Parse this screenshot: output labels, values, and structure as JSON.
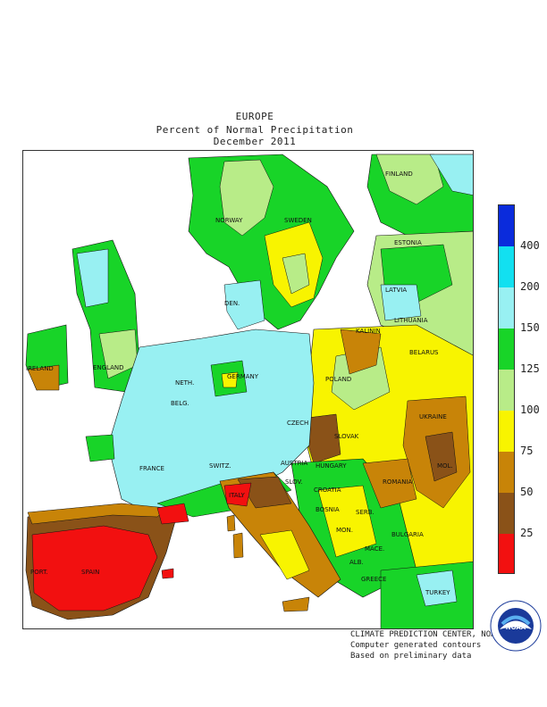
{
  "header": {
    "region": "EUROPE",
    "subtitle": "Percent of Normal Precipitation",
    "period": "December 2011"
  },
  "legend": {
    "levels": [
      "400",
      "200",
      "150",
      "125",
      "100",
      "75",
      "50",
      "25"
    ],
    "colors": {
      "over400": "#0a2bdc",
      "c200_400": "#12e0f0",
      "c150_200": "#98f0f2",
      "c125_150": "#18d428",
      "c100_125": "#b8ec88",
      "c75_100": "#f8f400",
      "c50_75": "#c88408",
      "c25_50": "#8a5218",
      "under25": "#f21010"
    }
  },
  "map_labels": {
    "finland": "FINLAND",
    "norway": "NORWAY",
    "sweden": "SWEDEN",
    "estonia": "ESTONIA",
    "latvia": "LATVIA",
    "lithuania": "LITHUANIA",
    "kalinin": "KALININ",
    "belarus": "BELARUS",
    "den": "DEN.",
    "ireland": "IRELAND",
    "england": "ENGLAND",
    "neth": "NETH.",
    "belg": "BELG.",
    "germany": "GERMANY",
    "poland": "POLAND",
    "czech": "CZECH",
    "slovak": "SLOVAK",
    "ukraine": "UKRAINE",
    "mol": "MOL.",
    "france": "FRANCE",
    "switz": "SWITZ.",
    "austria": "AUSTRIA",
    "hungary": "HUNGARY",
    "romania": "ROMANIA",
    "slov": "SLOV.",
    "croatia": "CROATIA",
    "bosnia": "BOSNIA",
    "serb": "SERB.",
    "italy": "ITALY",
    "mon": "MON.",
    "bulgaria": "BULGARIA",
    "mace": "MACE.",
    "alb": "ALB.",
    "greece": "GREECE",
    "turkey": "TURKEY",
    "port": "PORT.",
    "spain": "SPAIN"
  },
  "credits": {
    "line1": "CLIMATE PREDICTION CENTER, NOAA",
    "line2": "Computer generated contours",
    "line3": "Based on preliminary data"
  },
  "logo": {
    "text": "NOAA",
    "ring": "NATIONAL OCEANIC AND ATMOSPHERIC ADMINISTRATION · U.S. DEPARTMENT OF COMMERCE"
  }
}
